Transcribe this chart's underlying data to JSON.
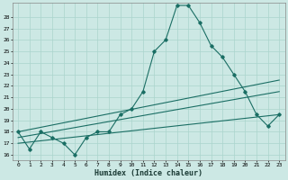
{
  "title": "",
  "xlabel": "Humidex (Indice chaleur)",
  "bg_color": "#cce8e4",
  "grid_color": "#aad4cc",
  "line_color": "#1a6e64",
  "xlim": [
    -0.5,
    23.5
  ],
  "ylim": [
    15.5,
    29.2
  ],
  "yticks": [
    16,
    17,
    18,
    19,
    20,
    21,
    22,
    23,
    24,
    25,
    26,
    27,
    28
  ],
  "xticks": [
    0,
    1,
    2,
    3,
    4,
    5,
    6,
    7,
    8,
    9,
    10,
    11,
    12,
    13,
    14,
    15,
    16,
    17,
    18,
    19,
    20,
    21,
    22,
    23
  ],
  "main_x": [
    0,
    1,
    2,
    3,
    4,
    5,
    6,
    7,
    8,
    9,
    10,
    11,
    12,
    13,
    14,
    15,
    16,
    17,
    18,
    19,
    20,
    21,
    22,
    23
  ],
  "main_y": [
    18.0,
    16.5,
    18.0,
    17.5,
    17.0,
    16.0,
    17.5,
    18.0,
    18.0,
    19.5,
    20.0,
    21.5,
    25.0,
    26.0,
    29.0,
    29.0,
    27.5,
    25.5,
    24.5,
    23.0,
    21.5,
    19.5,
    18.5,
    19.5
  ],
  "trend1_x": [
    0,
    23
  ],
  "trend1_y": [
    18.0,
    22.5
  ],
  "trend2_x": [
    0,
    23
  ],
  "trend2_y": [
    17.5,
    21.5
  ],
  "trend3_x": [
    0,
    23
  ],
  "trend3_y": [
    17.0,
    19.5
  ]
}
